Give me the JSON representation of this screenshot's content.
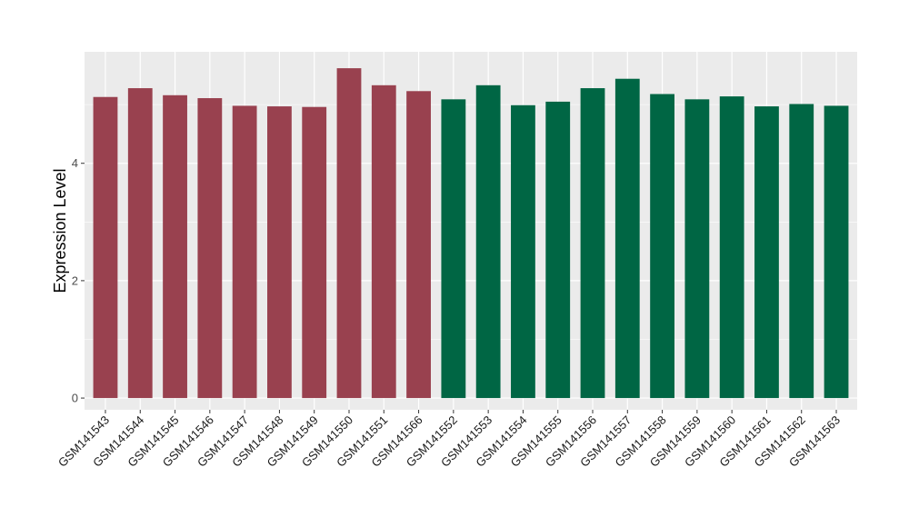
{
  "chart_data": {
    "type": "bar",
    "title": "",
    "xlabel": "",
    "ylabel": "Expression Level",
    "ylim": [
      -0.2,
      5.9
    ],
    "yticks": [
      0,
      2,
      4
    ],
    "grid": true,
    "legend": "none",
    "categories": [
      "GSM141543",
      "GSM141544",
      "GSM141545",
      "GSM141546",
      "GSM141547",
      "GSM141548",
      "GSM141549",
      "GSM141550",
      "GSM141551",
      "GSM141566",
      "GSM141552",
      "GSM141553",
      "GSM141554",
      "GSM141555",
      "GSM141556",
      "GSM141557",
      "GSM141558",
      "GSM141559",
      "GSM141560",
      "GSM141561",
      "GSM141562",
      "GSM141563"
    ],
    "values": [
      5.13,
      5.28,
      5.16,
      5.11,
      4.98,
      4.97,
      4.96,
      5.62,
      5.33,
      5.23,
      5.09,
      5.33,
      4.99,
      5.05,
      5.28,
      5.44,
      5.18,
      5.09,
      5.14,
      4.97,
      5.01,
      4.98
    ],
    "bar_colors": [
      "#99414f",
      "#99414f",
      "#99414f",
      "#99414f",
      "#99414f",
      "#99414f",
      "#99414f",
      "#99414f",
      "#99414f",
      "#99414f",
      "#006644",
      "#006644",
      "#006644",
      "#006644",
      "#006644",
      "#006644",
      "#006644",
      "#006644",
      "#006644",
      "#006644",
      "#006644",
      "#006644"
    ],
    "panel_background": "#ebebeb",
    "grid_color": "#ffffff"
  }
}
